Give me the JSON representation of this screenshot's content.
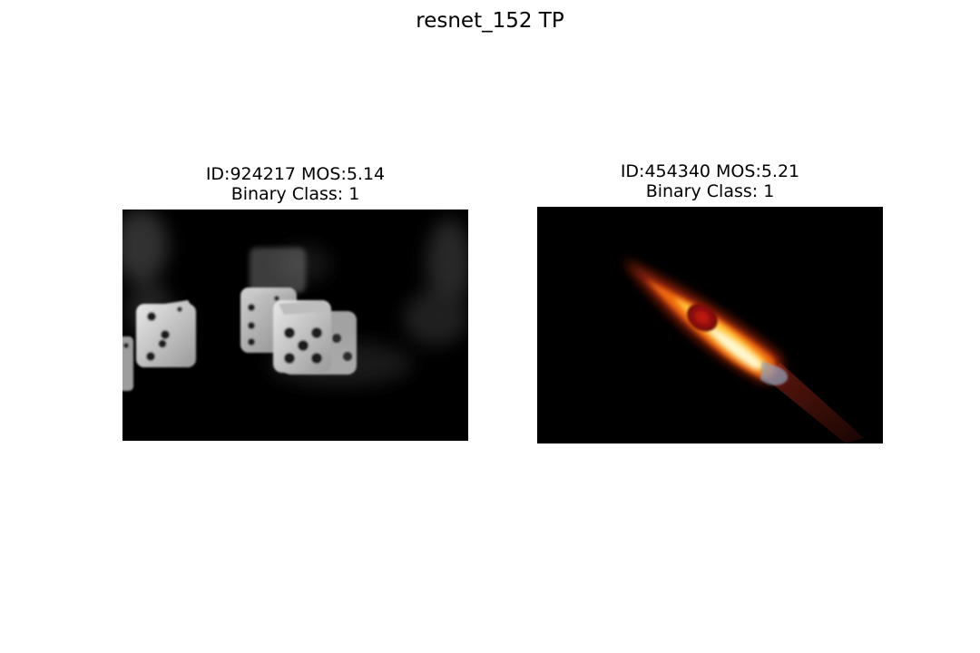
{
  "figure": {
    "suptitle": "resnet_152 TP"
  },
  "panels": [
    {
      "id_mos": "ID:924217 MOS:5.14",
      "binary_class": "Binary Class: 1",
      "image": "dice-rolling-smoke-photo"
    },
    {
      "id_mos": "ID:454340 MOS:5.21",
      "binary_class": "Binary Class: 1",
      "image": "burning-match-photo"
    }
  ]
}
